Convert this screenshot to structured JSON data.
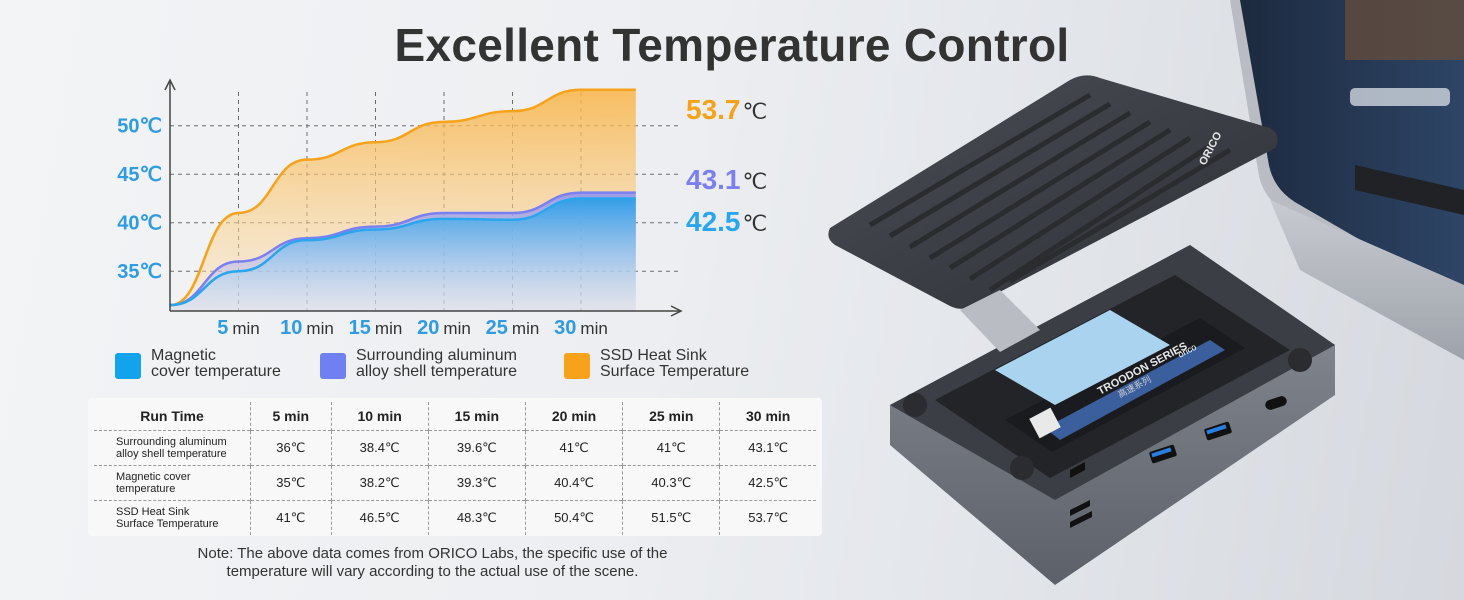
{
  "title": "Excellent Temperature Control",
  "chart_data": {
    "type": "area",
    "x_labels": [
      "5 min",
      "10 min",
      "15 min",
      "20 min",
      "25 min",
      "30 min"
    ],
    "y_ticks": [
      {
        "value": 35,
        "label": "35℃"
      },
      {
        "value": 40,
        "label": "40℃"
      },
      {
        "value": 45,
        "label": "45℃"
      },
      {
        "value": 50,
        "label": "50℃"
      }
    ],
    "ylim": [
      31,
      54.5
    ],
    "grid": true,
    "series": [
      {
        "name": "SSD Heat Sink\nSurface Temperature",
        "color": "#f7a21b",
        "points": [
          [
            0,
            31.5
          ],
          [
            5,
            41
          ],
          [
            10,
            46.5
          ],
          [
            15,
            48.3
          ],
          [
            20,
            50.4
          ],
          [
            25,
            51.5
          ],
          [
            30,
            53.7
          ],
          [
            34,
            53.7
          ]
        ],
        "end_label_value": "53.7",
        "end_label_unit": "℃"
      },
      {
        "name": "Surrounding aluminum\nalloy shell temperature",
        "color": "#7b80f0",
        "points": [
          [
            0,
            31.5
          ],
          [
            5,
            36
          ],
          [
            10,
            38.4
          ],
          [
            15,
            39.6
          ],
          [
            20,
            41
          ],
          [
            25,
            41
          ],
          [
            30,
            43.1
          ],
          [
            34,
            43.1
          ]
        ],
        "end_label_value": "43.1",
        "end_label_unit": "℃"
      },
      {
        "name": "Magnetic\ncover temperature",
        "color": "#2aa6ee",
        "points": [
          [
            0,
            31.5
          ],
          [
            5,
            35
          ],
          [
            10,
            38.2
          ],
          [
            15,
            39.3
          ],
          [
            20,
            40.4
          ],
          [
            25,
            40.3
          ],
          [
            30,
            42.5
          ],
          [
            34,
            42.5
          ]
        ],
        "end_label_value": "42.5",
        "end_label_unit": "℃"
      }
    ]
  },
  "legend": [
    {
      "label": "Magnetic\ncover temperature",
      "color": "#12a3ec"
    },
    {
      "label": "Surrounding aluminum\nalloy shell temperature",
      "color": "#6f80f0"
    },
    {
      "label": "SSD Heat Sink\nSurface Temperature",
      "color": "#f7a21b"
    }
  ],
  "table": {
    "headers": [
      "Run Time",
      "5 min",
      "10 min",
      "15 min",
      "20 min",
      "25 min",
      "30 min"
    ],
    "rows": [
      {
        "label": "Surrounding aluminum\nalloy shell temperature",
        "values": [
          "36℃",
          "38.4℃",
          "39.6℃",
          "41℃",
          "41℃",
          "43.1℃"
        ]
      },
      {
        "label": "Magnetic cover\ntemperature",
        "values": [
          "35℃",
          "38.2℃",
          "39.3℃",
          "40.4℃",
          "40.3℃",
          "42.5℃"
        ]
      },
      {
        "label": "SSD Heat Sink\nSurface Temperature",
        "values": [
          "41℃",
          "46.5℃",
          "48.3℃",
          "50.4℃",
          "51.5℃",
          "53.7℃"
        ]
      }
    ]
  },
  "note": "Note: The above data comes from ORICO Labs, the specific use of the\ntemperature will vary according to the actual use of the scene.",
  "product": {
    "brand": "ORICO",
    "ssd_label": "TROODON SERIES",
    "ssd_sublabel": "高速系列",
    "ssd_brand": "orico"
  }
}
